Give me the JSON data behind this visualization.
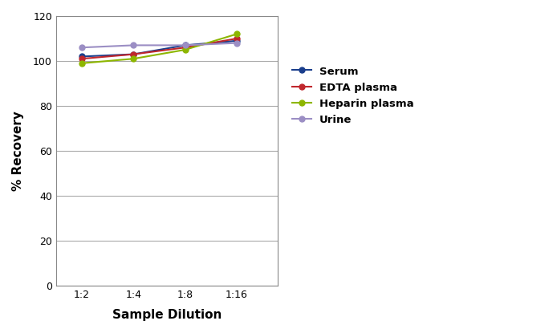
{
  "x_labels": [
    "1:2",
    "1:4",
    "1:8",
    "1:16"
  ],
  "x_values": [
    1,
    2,
    3,
    4
  ],
  "series": [
    {
      "name": "Serum",
      "color": "#1a3e8c",
      "values": [
        102,
        103,
        107,
        109
      ]
    },
    {
      "name": "EDTA plasma",
      "color": "#c0272d",
      "values": [
        101,
        103,
        106,
        110
      ]
    },
    {
      "name": "Heparin plasma",
      "color": "#8db600",
      "values": [
        99,
        101,
        105,
        112
      ]
    },
    {
      "name": "Urine",
      "color": "#9b8ec4",
      "values": [
        106,
        107,
        107,
        108
      ]
    }
  ],
  "xlabel": "Sample Dilution",
  "ylabel": "% Recovery",
  "ylim": [
    0,
    120
  ],
  "yticks": [
    0,
    20,
    40,
    60,
    80,
    100,
    120
  ],
  "grid_color": "#aaaaaa",
  "background_color": "#ffffff",
  "plot_background": "#ffffff",
  "marker": "o",
  "marker_size": 5,
  "linewidth": 1.5,
  "legend_fontsize": 9.5,
  "axis_label_fontsize": 11,
  "tick_fontsize": 9
}
